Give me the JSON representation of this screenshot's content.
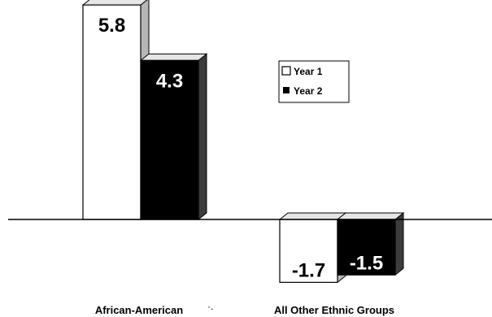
{
  "chart_data": {
    "type": "bar",
    "categories": [
      "African-American",
      "All Other Ethnic Groups"
    ],
    "series": [
      {
        "name": "Year 1",
        "values": [
          5.8,
          -1.7
        ],
        "color": "#ffffff"
      },
      {
        "name": "Year 2",
        "values": [
          4.3,
          -1.5
        ],
        "color": "#000000"
      }
    ],
    "value_labels": [
      [
        "5.8",
        "-1.7"
      ],
      [
        "4.3",
        "-1.5"
      ]
    ],
    "title": "",
    "xlabel": "",
    "ylabel": "",
    "ylim": [
      -2.5,
      6.2
    ],
    "grid": false,
    "legend_position": "right",
    "style": "3d"
  }
}
